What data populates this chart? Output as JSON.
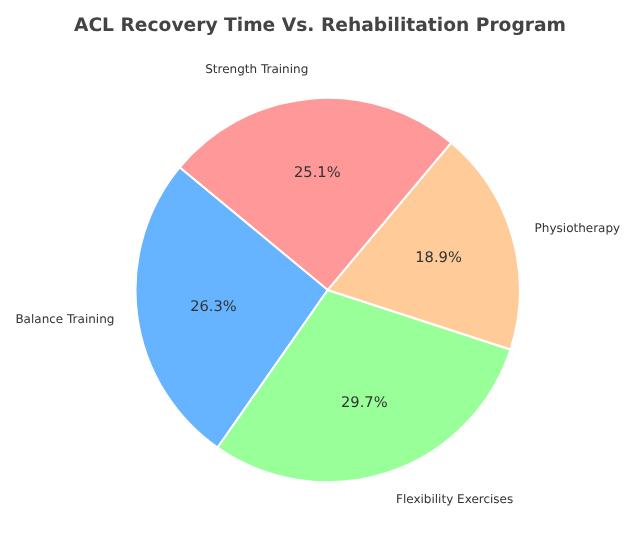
{
  "chart_data": {
    "type": "pie",
    "title": "ACL Recovery Time Vs. Rehabilitation Program",
    "categories": [
      "Strength Training",
      "Balance Training",
      "Flexibility Exercises",
      "Physiotherapy"
    ],
    "values": [
      25.1,
      26.3,
      29.7,
      18.9
    ],
    "colors": [
      "#ff9999",
      "#66b3ff",
      "#99ff99",
      "#ffcc99"
    ],
    "value_labels": [
      "25.1%",
      "26.3%",
      "29.7%",
      "18.9%"
    ]
  }
}
